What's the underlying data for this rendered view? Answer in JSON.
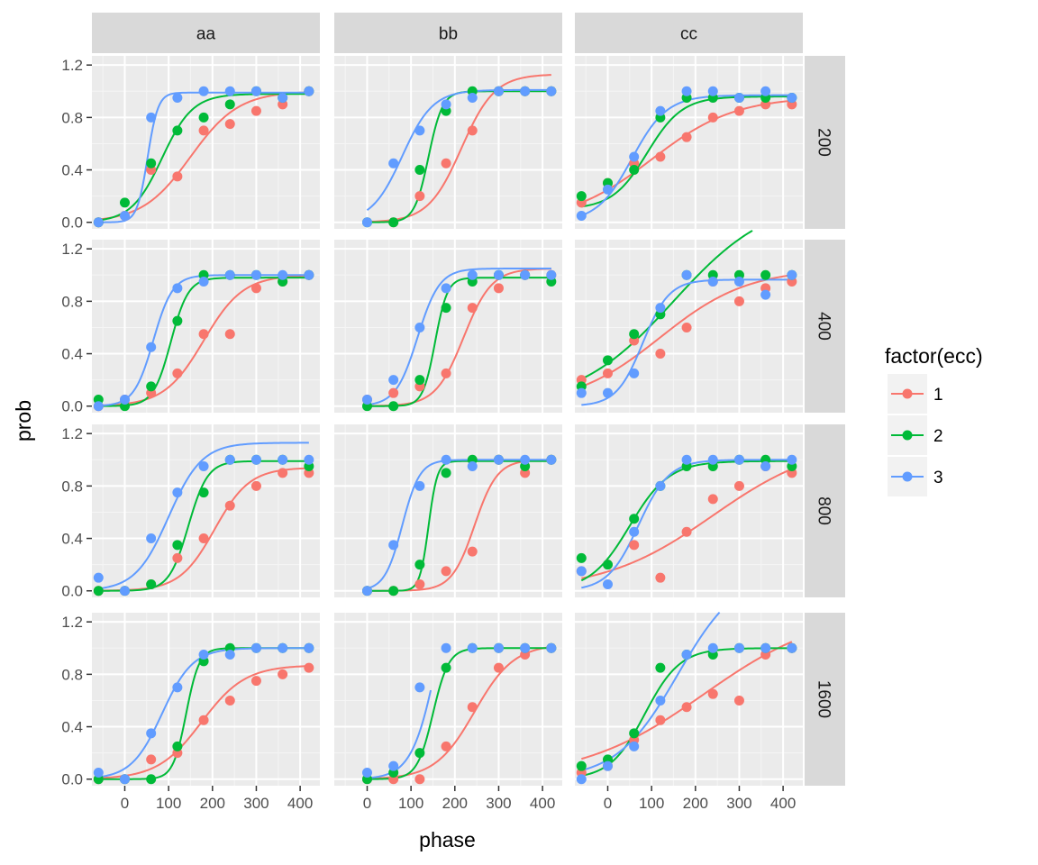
{
  "chart_data": {
    "type": "scatter",
    "facet_cols": [
      "aa",
      "bb",
      "cc"
    ],
    "facet_rows": [
      "200",
      "400",
      "800",
      "1600"
    ],
    "xlabel": "phase",
    "ylabel": "prob",
    "x_ticks": [
      0,
      100,
      200,
      300,
      400
    ],
    "y_ticks": [
      0.0,
      0.4,
      0.8,
      1.2
    ],
    "y_tick_labels": [
      "0.0",
      "0.4",
      "0.8",
      "1.2"
    ],
    "x_range": [
      -75,
      445
    ],
    "y_range": [
      -0.05,
      1.27
    ],
    "legend": {
      "title": "factor(ecc)",
      "entries": [
        {
          "label": "1",
          "color": "#F8766D"
        },
        {
          "label": "2",
          "color": "#00BA38"
        },
        {
          "label": "3",
          "color": "#619CFF"
        }
      ],
      "placement": "right"
    },
    "x_points": [
      -60,
      0,
      60,
      120,
      180,
      240,
      300,
      360,
      420
    ],
    "panels": [
      {
        "col": "aa",
        "row": "200",
        "series": [
          {
            "ecc": "1",
            "points": [
              0,
              0.05,
              0.4,
              0.35,
              0.7,
              0.75,
              0.85,
              0.9,
              1.0
            ],
            "curve": {
              "lo": 0,
              "hi": 1.0,
              "mid": 150,
              "scale": 55,
              "xmin": -60,
              "xmax": 420
            }
          },
          {
            "ecc": "2",
            "points": [
              0,
              0.15,
              0.45,
              0.7,
              0.8,
              0.9,
              1.0,
              0.95,
              1.0
            ],
            "curve": {
              "lo": 0,
              "hi": 0.98,
              "mid": 85,
              "scale": 35,
              "xmin": -60,
              "xmax": 420
            }
          },
          {
            "ecc": "3",
            "points": [
              0,
              0.05,
              0.8,
              0.95,
              1.0,
              1.0,
              1.0,
              0.95,
              1.0
            ],
            "curve": {
              "lo": 0,
              "hi": 0.99,
              "mid": 52,
              "scale": 12,
              "xmin": -60,
              "xmax": 420
            }
          }
        ]
      },
      {
        "col": "bb",
        "row": "200",
        "series": [
          {
            "ecc": "1",
            "points": [
              null,
              null,
              0,
              0.2,
              0.45,
              0.7,
              1.0,
              1.0,
              1.0
            ],
            "curve": {
              "lo": 0,
              "hi": 1.13,
              "mid": 215,
              "scale": 38,
              "xmin": 0,
              "xmax": 420
            }
          },
          {
            "ecc": "2",
            "points": [
              null,
              0,
              0,
              0.4,
              0.85,
              1.0,
              1.0,
              1.0,
              1.0
            ],
            "curve": {
              "lo": 0,
              "hi": 1.0,
              "mid": 140,
              "scale": 16,
              "xmin": 0,
              "xmax": 420
            }
          },
          {
            "ecc": "3",
            "points": [
              null,
              0,
              0.45,
              0.7,
              0.9,
              0.95,
              1.0,
              1.0,
              1.0
            ],
            "curve": {
              "lo": 0,
              "hi": 1.01,
              "mid": 80,
              "scale": 35,
              "xmin": 0,
              "xmax": 420
            }
          }
        ]
      },
      {
        "col": "cc",
        "row": "200",
        "series": [
          {
            "ecc": "1",
            "points": [
              0.15,
              0.3,
              0.45,
              0.5,
              0.65,
              0.8,
              0.85,
              0.9,
              0.9
            ],
            "curve": {
              "lo": 0,
              "hi": 0.96,
              "mid": 100,
              "scale": 95,
              "xmin": -60,
              "xmax": 420
            }
          },
          {
            "ecc": "2",
            "points": [
              0.2,
              0.3,
              0.4,
              0.8,
              0.95,
              0.95,
              0.95,
              0.95,
              0.95
            ],
            "curve": {
              "lo": 0.1,
              "hi": 0.96,
              "mid": 90,
              "scale": 40,
              "xmin": -60,
              "xmax": 420
            }
          },
          {
            "ecc": "3",
            "points": [
              0.05,
              0.25,
              0.5,
              0.85,
              1.0,
              1.0,
              0.95,
              1.0,
              0.95
            ],
            "curve": {
              "lo": 0,
              "hi": 0.97,
              "mid": 55,
              "scale": 40,
              "xmin": -60,
              "xmax": 420
            }
          }
        ]
      },
      {
        "col": "aa",
        "row": "400",
        "series": [
          {
            "ecc": "1",
            "points": [
              0,
              0.05,
              0.1,
              0.25,
              0.55,
              0.55,
              0.9,
              0.95,
              1.0
            ],
            "curve": {
              "lo": 0,
              "hi": 1.0,
              "mid": 180,
              "scale": 45,
              "xmin": -60,
              "xmax": 420
            }
          },
          {
            "ecc": "2",
            "points": [
              0.05,
              0,
              0.15,
              0.65,
              1.0,
              1.0,
              1.0,
              0.95,
              1.0
            ],
            "curve": {
              "lo": 0,
              "hi": 0.98,
              "mid": 105,
              "scale": 20,
              "xmin": -60,
              "xmax": 420
            }
          },
          {
            "ecc": "3",
            "points": [
              0,
              0.05,
              0.45,
              0.9,
              0.95,
              1.0,
              1.0,
              1.0,
              1.0
            ],
            "curve": {
              "lo": 0,
              "hi": 1.0,
              "mid": 65,
              "scale": 22,
              "xmin": -60,
              "xmax": 420
            }
          }
        ]
      },
      {
        "col": "bb",
        "row": "400",
        "series": [
          {
            "ecc": "1",
            "points": [
              null,
              0.05,
              0.1,
              0.15,
              0.25,
              0.75,
              0.9,
              1.0,
              1.0
            ],
            "curve": {
              "lo": 0,
              "hi": 1.05,
              "mid": 220,
              "scale": 32,
              "xmin": 0,
              "xmax": 420
            }
          },
          {
            "ecc": "2",
            "points": [
              null,
              0,
              0,
              0.2,
              0.75,
              0.95,
              1.0,
              1.0,
              0.95
            ],
            "curve": {
              "lo": 0,
              "hi": 0.98,
              "mid": 155,
              "scale": 14,
              "xmin": 0,
              "xmax": 420
            }
          },
          {
            "ecc": "3",
            "points": [
              null,
              0.05,
              0.2,
              0.6,
              0.9,
              1.0,
              1.0,
              1.0,
              1.0
            ],
            "curve": {
              "lo": 0,
              "hi": 1.05,
              "mid": 115,
              "scale": 25,
              "xmin": 0,
              "xmax": 420
            }
          }
        ]
      },
      {
        "col": "cc",
        "row": "400",
        "series": [
          {
            "ecc": "1",
            "points": [
              0.2,
              0.25,
              0.5,
              0.4,
              0.6,
              0.95,
              0.8,
              0.9,
              0.95
            ],
            "curve": {
              "lo": 0,
              "hi": 1.05,
              "mid": 120,
              "scale": 100,
              "xmin": -60,
              "xmax": 420
            }
          },
          {
            "ecc": "2",
            "points": [
              0.15,
              0.35,
              0.55,
              0.7,
              1.0,
              1.0,
              1.0,
              1.0,
              1.0
            ],
            "curve": {
              "lo": 0,
              "hi": 1.6,
              "mid": 150,
              "scale": 110,
              "xmin": -60,
              "xmax": 330
            }
          },
          {
            "ecc": "3",
            "points": [
              0.1,
              0.1,
              0.25,
              0.75,
              1.0,
              0.95,
              0.95,
              0.85,
              1.0
            ],
            "curve": {
              "lo": 0,
              "hi": 0.965,
              "mid": 80,
              "scale": 30,
              "xmin": -60,
              "xmax": 420
            }
          }
        ]
      },
      {
        "col": "aa",
        "row": "800",
        "series": [
          {
            "ecc": "1",
            "points": [
              0,
              0,
              0.05,
              0.25,
              0.4,
              0.65,
              0.8,
              0.9,
              0.9
            ],
            "curve": {
              "lo": 0,
              "hi": 0.94,
              "mid": 205,
              "scale": 40,
              "xmin": -60,
              "xmax": 420
            }
          },
          {
            "ecc": "2",
            "points": [
              0,
              0,
              0.05,
              0.35,
              0.75,
              1.0,
              1.0,
              1.0,
              0.95
            ],
            "curve": {
              "lo": 0,
              "hi": 0.99,
              "mid": 145,
              "scale": 22,
              "xmin": -60,
              "xmax": 420
            }
          },
          {
            "ecc": "3",
            "points": [
              0.1,
              0,
              0.4,
              0.75,
              0.95,
              1.0,
              1.0,
              1.0,
              1.0
            ],
            "curve": {
              "lo": 0,
              "hi": 1.13,
              "mid": 100,
              "scale": 38,
              "xmin": -60,
              "xmax": 420
            }
          }
        ]
      },
      {
        "col": "bb",
        "row": "800",
        "series": [
          {
            "ecc": "1",
            "points": [
              null,
              0,
              0,
              0.05,
              0.15,
              0.3,
              1.0,
              0.9,
              1.0
            ],
            "curve": {
              "lo": 0,
              "hi": 1.0,
              "mid": 245,
              "scale": 26,
              "xmin": 0,
              "xmax": 420
            }
          },
          {
            "ecc": "2",
            "points": [
              null,
              0,
              0,
              0.2,
              0.9,
              1.0,
              1.0,
              0.95,
              1.0
            ],
            "curve": {
              "lo": 0,
              "hi": 0.99,
              "mid": 140,
              "scale": 10,
              "xmin": 0,
              "xmax": 420
            }
          },
          {
            "ecc": "3",
            "points": [
              null,
              0,
              0.35,
              0.8,
              1.0,
              0.95,
              1.0,
              1.0,
              1.0
            ],
            "curve": {
              "lo": 0,
              "hi": 1.0,
              "mid": 80,
              "scale": 20,
              "xmin": 0,
              "xmax": 420
            }
          }
        ]
      },
      {
        "col": "cc",
        "row": "800",
        "series": [
          {
            "ecc": "1",
            "points": [
              0.15,
              0.2,
              0.35,
              0.1,
              0.45,
              0.7,
              0.8,
              0.95,
              0.9
            ],
            "curve": {
              "lo": 0,
              "hi": 1.15,
              "mid": 240,
              "scale": 125,
              "xmin": -60,
              "xmax": 420
            }
          },
          {
            "ecc": "2",
            "points": [
              0.25,
              0.2,
              0.55,
              0.8,
              0.95,
              0.95,
              1.0,
              1.0,
              0.95
            ],
            "curve": {
              "lo": 0,
              "hi": 0.99,
              "mid": 50,
              "scale": 45,
              "xmin": -60,
              "xmax": 420
            }
          },
          {
            "ecc": "3",
            "points": [
              0.15,
              0.05,
              0.45,
              0.8,
              1.0,
              1.0,
              1.0,
              0.95,
              1.0
            ],
            "curve": {
              "lo": 0,
              "hi": 1.0,
              "mid": 70,
              "scale": 35,
              "xmin": -60,
              "xmax": 420
            }
          }
        ]
      },
      {
        "col": "aa",
        "row": "1600",
        "series": [
          {
            "ecc": "1",
            "points": [
              0,
              0,
              0.15,
              0.2,
              0.45,
              0.6,
              0.75,
              0.8,
              0.85
            ],
            "curve": {
              "lo": 0,
              "hi": 0.87,
              "mid": 175,
              "scale": 50,
              "xmin": -60,
              "xmax": 420
            }
          },
          {
            "ecc": "2",
            "points": [
              0,
              0,
              0,
              0.25,
              0.9,
              1.0,
              1.0,
              1.0,
              1.0
            ],
            "curve": {
              "lo": 0,
              "hi": 1.0,
              "mid": 140,
              "scale": 15,
              "xmin": -60,
              "xmax": 420
            }
          },
          {
            "ecc": "3",
            "points": [
              0.05,
              0,
              0.35,
              0.7,
              0.95,
              0.95,
              1.0,
              1.0,
              1.0
            ],
            "curve": {
              "lo": 0,
              "hi": 1.0,
              "mid": 85,
              "scale": 35,
              "xmin": -60,
              "xmax": 420
            }
          }
        ]
      },
      {
        "col": "bb",
        "row": "1600",
        "series": [
          {
            "ecc": "1",
            "points": [
              null,
              0,
              0,
              0,
              0.25,
              0.55,
              0.85,
              0.95,
              1.0
            ],
            "curve": {
              "lo": 0,
              "hi": 1.03,
              "mid": 245,
              "scale": 45,
              "xmin": 0,
              "xmax": 420
            }
          },
          {
            "ecc": "2",
            "points": [
              null,
              0,
              0.05,
              0.2,
              0.85,
              1.0,
              1.0,
              1.0,
              1.0
            ],
            "curve": {
              "lo": 0,
              "hi": 1.0,
              "mid": 150,
              "scale": 18,
              "xmin": 0,
              "xmax": 420
            }
          },
          {
            "ecc": "3",
            "points": [
              null,
              0.05,
              0.1,
              0.7,
              1.0,
              1.0,
              1.0,
              1.0,
              1.0
            ],
            "curve": {
              "lo": 0,
              "hi": 2.0,
              "mid": 165,
              "scale": 30,
              "xmin": 0,
              "xmax": 145
            }
          }
        ]
      },
      {
        "col": "cc",
        "row": "1600",
        "series": [
          {
            "ecc": "1",
            "points": [
              0.05,
              0.1,
              0.3,
              0.45,
              0.55,
              0.65,
              0.6,
              0.95,
              1.0
            ],
            "curve": {
              "lo": 0,
              "hi": 1.3,
              "mid": 220,
              "scale": 140,
              "xmin": -60,
              "xmax": 420
            }
          },
          {
            "ecc": "2",
            "points": [
              0.1,
              0.15,
              0.35,
              0.85,
              0.95,
              0.95,
              1.0,
              1.0,
              1.0
            ],
            "curve": {
              "lo": 0,
              "hi": 1.0,
              "mid": 85,
              "scale": 40,
              "xmin": -60,
              "xmax": 420
            }
          },
          {
            "ecc": "3",
            "points": [
              0,
              0.1,
              0.25,
              0.6,
              0.95,
              1.0,
              1.0,
              1.0,
              1.0
            ],
            "curve": {
              "lo": 0,
              "hi": 1.6,
              "mid": 160,
              "scale": 70,
              "xmin": -60,
              "xmax": 255
            }
          }
        ]
      }
    ]
  }
}
